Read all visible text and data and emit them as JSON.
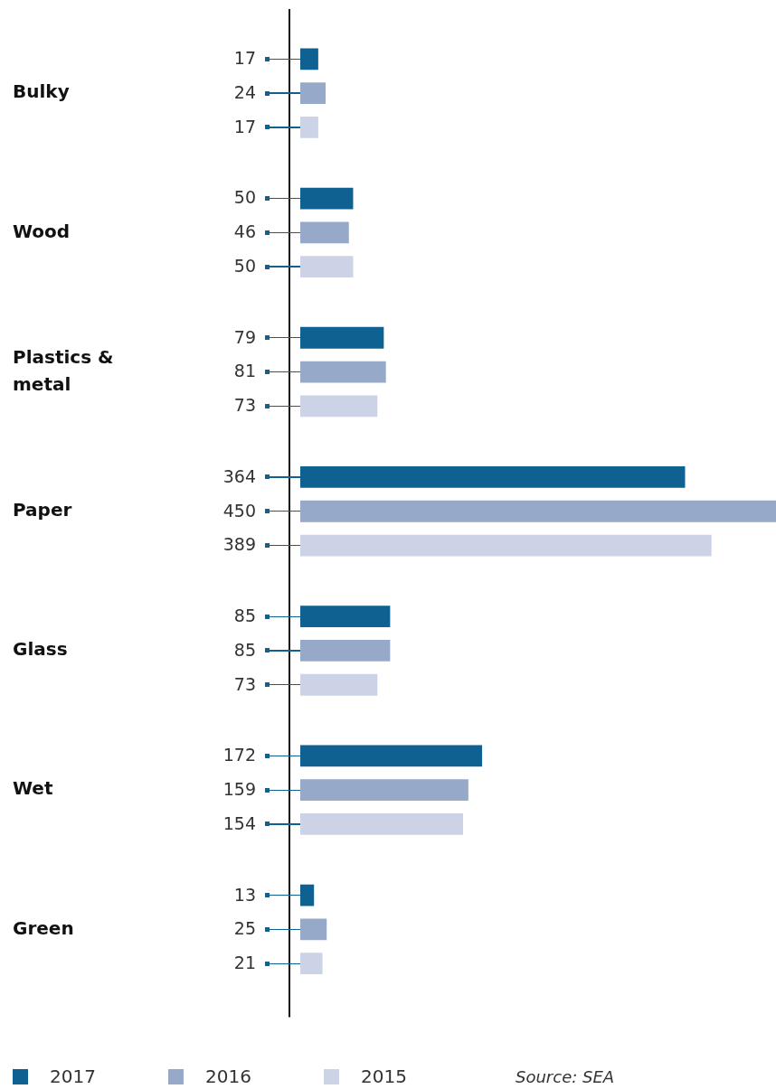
{
  "chart_data": {
    "type": "bar",
    "orientation": "horizontal",
    "categories": [
      "Bulky",
      "Wood",
      "Plastics & metal",
      "Paper",
      "Glass",
      "Wet",
      "Green"
    ],
    "series": [
      {
        "name": "2017",
        "color": "#0e6190",
        "values": [
          17,
          50,
          79,
          364,
          85,
          172,
          13
        ]
      },
      {
        "name": "2016",
        "color": "#97a9c8",
        "values": [
          24,
          46,
          81,
          450,
          85,
          159,
          25
        ]
      },
      {
        "name": "2015",
        "color": "#cdd3e6",
        "values": [
          17,
          50,
          73,
          389,
          73,
          154,
          21
        ]
      }
    ],
    "data_labels": true,
    "legend": "bottom left",
    "grid": false,
    "annotations": [
      "Source: SEA"
    ]
  }
}
